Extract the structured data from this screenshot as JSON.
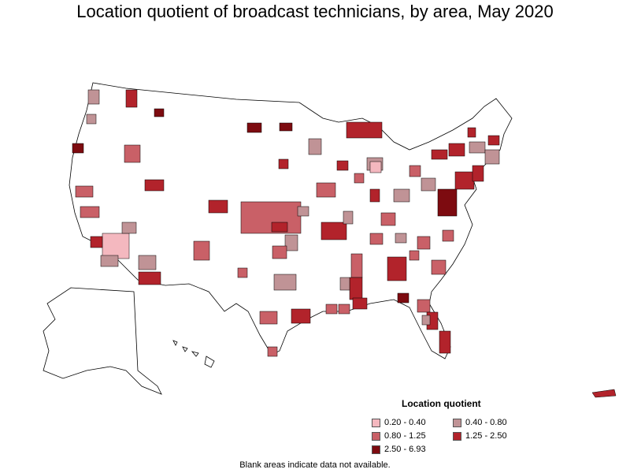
{
  "title": "Location quotient of broadcast technicians, by area, May 2020",
  "legend": {
    "title": "Location quotient",
    "items": [
      {
        "label": "0.20 - 0.40",
        "color": "#f4b8bf"
      },
      {
        "label": "0.40 - 0.80",
        "color": "#c09396"
      },
      {
        "label": "0.80 - 1.25",
        "color": "#c96067"
      },
      {
        "label": "1.25 - 2.50",
        "color": "#b2232b"
      },
      {
        "label": "2.50 - 6.93",
        "color": "#7d0b10"
      }
    ]
  },
  "footnote": "Blank areas indicate data not available."
}
